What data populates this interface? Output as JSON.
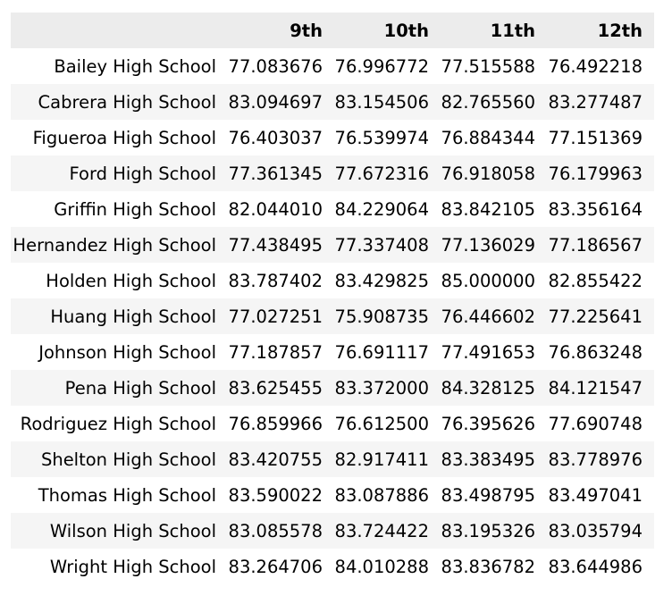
{
  "table": {
    "columns": [
      "",
      "9th",
      "10th",
      "11th",
      "12th"
    ],
    "rows": [
      {
        "school": "Bailey High School",
        "values": [
          "77.083676",
          "76.996772",
          "77.515588",
          "76.492218"
        ]
      },
      {
        "school": "Cabrera High School",
        "values": [
          "83.094697",
          "83.154506",
          "82.765560",
          "83.277487"
        ]
      },
      {
        "school": "Figueroa High School",
        "values": [
          "76.403037",
          "76.539974",
          "76.884344",
          "77.151369"
        ]
      },
      {
        "school": "Ford High School",
        "values": [
          "77.361345",
          "77.672316",
          "76.918058",
          "76.179963"
        ]
      },
      {
        "school": "Griffin High School",
        "values": [
          "82.044010",
          "84.229064",
          "83.842105",
          "83.356164"
        ]
      },
      {
        "school": "Hernandez High School",
        "values": [
          "77.438495",
          "77.337408",
          "77.136029",
          "77.186567"
        ]
      },
      {
        "school": "Holden High School",
        "values": [
          "83.787402",
          "83.429825",
          "85.000000",
          "82.855422"
        ]
      },
      {
        "school": "Huang High School",
        "values": [
          "77.027251",
          "75.908735",
          "76.446602",
          "77.225641"
        ]
      },
      {
        "school": "Johnson High School",
        "values": [
          "77.187857",
          "76.691117",
          "77.491653",
          "76.863248"
        ]
      },
      {
        "school": "Pena High School",
        "values": [
          "83.625455",
          "83.372000",
          "84.328125",
          "84.121547"
        ]
      },
      {
        "school": "Rodriguez High School",
        "values": [
          "76.859966",
          "76.612500",
          "76.395626",
          "77.690748"
        ]
      },
      {
        "school": "Shelton High School",
        "values": [
          "83.420755",
          "82.917411",
          "83.383495",
          "83.778976"
        ]
      },
      {
        "school": "Thomas High School",
        "values": [
          "83.590022",
          "83.087886",
          "83.498795",
          "83.497041"
        ]
      },
      {
        "school": "Wilson High School",
        "values": [
          "83.085578",
          "83.724422",
          "83.195326",
          "83.035794"
        ]
      },
      {
        "school": "Wright High School",
        "values": [
          "83.264706",
          "84.010288",
          "83.836782",
          "83.644986"
        ]
      }
    ]
  },
  "colors": {
    "header_bg": "#ececec",
    "striped_row_bg": "#f5f5f5",
    "plain_row_bg": "#ffffff",
    "text": "#000000"
  }
}
